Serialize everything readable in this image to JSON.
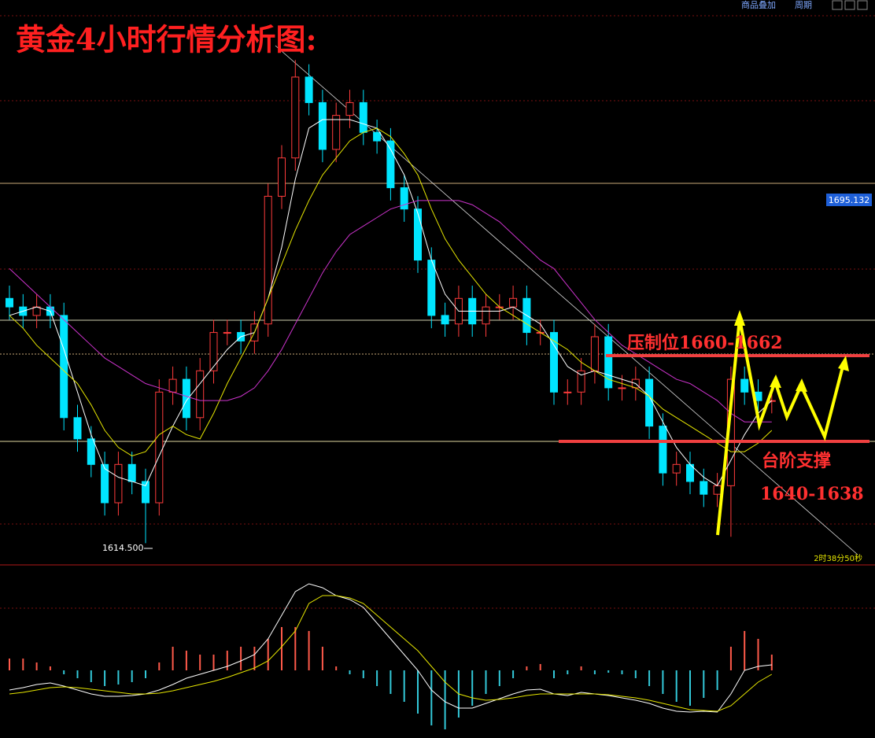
{
  "chart_data": [
    {
      "type": "candlestick",
      "title": "黄金4小时行情分析图:",
      "open": [
        1672,
        1670,
        1668,
        1670,
        1668,
        1644,
        1639,
        1633,
        1624,
        1633,
        1629,
        1624,
        1650,
        1653,
        1644,
        1655,
        1664,
        1664,
        1662,
        1666,
        1696,
        1705,
        1724,
        1718,
        1707,
        1715,
        1718,
        1711,
        1709,
        1698,
        1693,
        1681,
        1668,
        1666,
        1672,
        1666,
        1670,
        1670,
        1672,
        1664,
        1664,
        1650,
        1650,
        1655,
        1663,
        1651,
        1651,
        1653,
        1642,
        1631,
        1633,
        1629,
        1626,
        1628,
        1653,
        1650,
        1648
      ],
      "high": [
        1675,
        1673,
        1673,
        1673,
        1671,
        1647,
        1642,
        1636,
        1636,
        1636,
        1632,
        1653,
        1656,
        1656,
        1658,
        1667,
        1667,
        1667,
        1669,
        1699,
        1708,
        1728,
        1727,
        1721,
        1718,
        1721,
        1721,
        1714,
        1712,
        1701,
        1696,
        1684,
        1671,
        1675,
        1675,
        1673,
        1673,
        1675,
        1675,
        1667,
        1667,
        1653,
        1658,
        1666,
        1666,
        1654,
        1656,
        1656,
        1645,
        1636,
        1636,
        1632,
        1631,
        1656,
        1656,
        1653,
        1651
      ],
      "low": [
        1667,
        1665,
        1665,
        1665,
        1641,
        1636,
        1630,
        1621,
        1621,
        1626,
        1614.5,
        1621,
        1647,
        1641,
        1641,
        1652,
        1661,
        1659,
        1659,
        1663,
        1693,
        1702,
        1715,
        1704,
        1704,
        1712,
        1708,
        1706,
        1695,
        1690,
        1678,
        1665,
        1663,
        1663,
        1663,
        1663,
        1667,
        1667,
        1661,
        1661,
        1647,
        1647,
        1647,
        1652,
        1648,
        1648,
        1648,
        1639,
        1628,
        1628,
        1626,
        1623,
        1623,
        1616,
        1647,
        1645,
        1645
      ],
      "close": [
        1670,
        1668,
        1670,
        1668,
        1644,
        1639,
        1633,
        1624,
        1633,
        1629,
        1624,
        1650,
        1653,
        1644,
        1655,
        1664,
        1664,
        1662,
        1666,
        1696,
        1705,
        1724,
        1718,
        1707,
        1715,
        1718,
        1711,
        1709,
        1698,
        1693,
        1681,
        1668,
        1666,
        1672,
        1666,
        1670,
        1670,
        1672,
        1664,
        1664,
        1650,
        1650,
        1655,
        1663,
        1651,
        1651,
        1653,
        1642,
        1631,
        1633,
        1629,
        1626,
        1628,
        1653,
        1650,
        1648,
        1648
      ],
      "color_up": "#ff3b3b",
      "color_down": "#00e5ff",
      "series": [
        {
          "color": "#ffffff",
          "values": [
            1668,
            1669,
            1670,
            1669,
            1660,
            1650,
            1640,
            1632,
            1630,
            1629,
            1628,
            1635,
            1642,
            1648,
            1652,
            1656,
            1660,
            1663,
            1664,
            1672,
            1684,
            1700,
            1712,
            1714,
            1714,
            1714,
            1713,
            1712,
            1707,
            1701,
            1692,
            1681,
            1673,
            1669,
            1669,
            1669,
            1669,
            1670,
            1668,
            1666,
            1661,
            1656,
            1654,
            1655,
            1654,
            1653,
            1652,
            1649,
            1643,
            1637,
            1633,
            1630,
            1628,
            1634,
            1640,
            1645,
            1648
          ]
        },
        {
          "color": "#e6e600",
          "values": [
            1668,
            1665,
            1661,
            1658,
            1655,
            1652,
            1647,
            1641,
            1637,
            1635,
            1636,
            1640,
            1642,
            1640,
            1639,
            1645,
            1652,
            1658,
            1664,
            1672,
            1680,
            1688,
            1695,
            1701,
            1705,
            1709,
            1711,
            1712,
            1710,
            1706,
            1701,
            1693,
            1686,
            1681,
            1677,
            1673,
            1670,
            1668,
            1666,
            1664,
            1662,
            1660,
            1657,
            1655,
            1653,
            1652,
            1651,
            1649,
            1646,
            1644,
            1642,
            1640,
            1638,
            1636,
            1636,
            1638,
            1641
          ]
        },
        {
          "color": "#cc33cc",
          "values": [
            1679,
            1676,
            1673,
            1670,
            1667,
            1664,
            1661,
            1658,
            1656,
            1654,
            1652,
            1651,
            1650,
            1649,
            1648,
            1648,
            1648,
            1649,
            1651,
            1655,
            1660,
            1666,
            1672,
            1678,
            1683,
            1687,
            1689,
            1691,
            1693,
            1694,
            1695,
            1695,
            1695,
            1695,
            1694,
            1692,
            1690,
            1687,
            1684,
            1681,
            1679,
            1675,
            1671,
            1667,
            1664,
            1661,
            1659,
            1657,
            1655,
            1653,
            1652,
            1650,
            1648,
            1645,
            1643,
            1643,
            1643
          ]
        }
      ],
      "ylim": [
        1609.4,
        1742.1
      ],
      "price_tag": "1695.132",
      "low_label": "1614.500",
      "countdown": "2时38分50秒",
      "annotations": [
        "压制位1660-1662",
        "台阶支撑",
        "1640-1638"
      ]
    },
    {
      "type": "macd",
      "values": [
        1.5,
        1.5,
        1,
        0.5,
        -0.5,
        -1,
        -1.5,
        -2,
        -1.8,
        -1.5,
        -1,
        1,
        3,
        2.5,
        2,
        2,
        2.5,
        3,
        3,
        4,
        5.5,
        5.5,
        5,
        3,
        0.5,
        -0.5,
        -1,
        -2,
        -3,
        -4,
        -5.5,
        -7,
        -7.5,
        -6,
        -4.5,
        -3,
        -2,
        -1,
        0.5,
        0.8,
        -1,
        -0.5,
        0.5,
        -0.5,
        -0.3,
        -0.5,
        -1,
        -2,
        -3,
        -4,
        -4.5,
        -3.5,
        -2.5,
        3,
        5,
        4,
        2
      ],
      "color_up": "#ff5a4a",
      "color_down": "#33c8d8",
      "series": [
        {
          "color": "#ffffff",
          "values": [
            -2.5,
            -2.2,
            -1.8,
            -1.6,
            -2,
            -2.5,
            -3,
            -3.3,
            -3.3,
            -3.2,
            -3,
            -2.5,
            -1.8,
            -1,
            -0.5,
            0,
            0.5,
            1.2,
            2,
            4,
            7,
            10,
            11,
            10.5,
            9.5,
            9,
            8,
            6,
            4,
            2,
            0,
            -2.5,
            -4,
            -4.8,
            -4.8,
            -4.2,
            -3.6,
            -3,
            -2.5,
            -2.4,
            -3,
            -3.2,
            -2.8,
            -3,
            -3.2,
            -3.5,
            -3.8,
            -4.2,
            -4.8,
            -5.2,
            -5.3,
            -5.2,
            -5.3,
            -3,
            0,
            0.5,
            0.7
          ]
        },
        {
          "color": "#e6e600",
          "values": [
            -3,
            -2.8,
            -2.5,
            -2.2,
            -2.1,
            -2.2,
            -2.4,
            -2.6,
            -2.8,
            -3,
            -3,
            -2.9,
            -2.6,
            -2.2,
            -1.8,
            -1.4,
            -0.9,
            -0.3,
            0.3,
            1.2,
            3,
            5,
            8.5,
            9.5,
            9.5,
            9.2,
            8.5,
            7,
            5.5,
            4,
            2.5,
            0.5,
            -1.5,
            -3,
            -3.5,
            -3.8,
            -3.7,
            -3.5,
            -3.2,
            -3,
            -3,
            -3,
            -3,
            -3,
            -3.1,
            -3.3,
            -3.5,
            -3.8,
            -4.2,
            -4.6,
            -5,
            -5.1,
            -5.2,
            -4.5,
            -3,
            -1.5,
            -0.5
          ]
        }
      ],
      "ylim": [
        -8.6,
        13.2
      ]
    }
  ],
  "toolbar": [
    "商品叠加",
    "周期"
  ]
}
